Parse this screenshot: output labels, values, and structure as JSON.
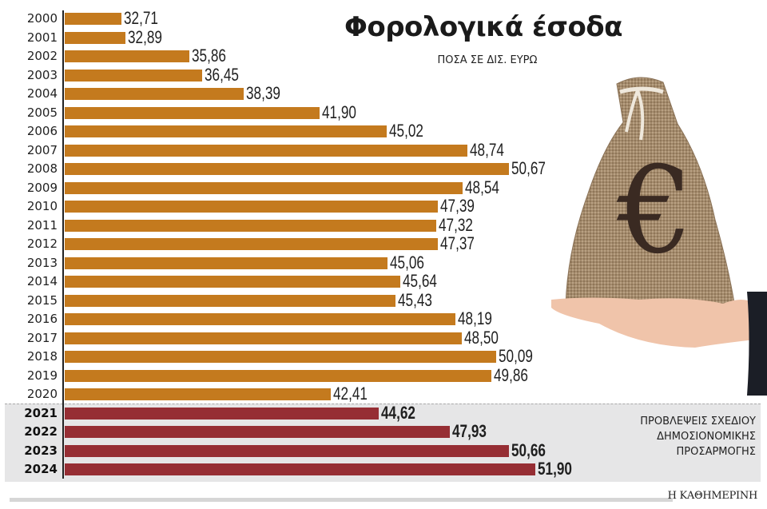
{
  "title": "Φορολογικά έσοδα",
  "subtitle": "ΠΟΣΑ ΣΕ ΔΙΣ. ΕΥΡΩ",
  "forecast_note": [
    "ΠΡΟΒΛΕΨΕΙΣ ΣΧΕΔΙΟΥ",
    "ΔΗΜΟΣΙΟΝΟΜΙΚΗΣ",
    "ΠΡΟΣΑΡΜΟΓΗΣ"
  ],
  "brand": "Η ΚΑΘΗΜΕΡΙΝΗ",
  "colors": {
    "actual": "#c47a1e",
    "forecast": "#962e34",
    "forecast_bg": "#e6e6e7"
  },
  "illustration": "hand-holding-euro-money-bag",
  "chart_data": {
    "type": "bar",
    "orientation": "horizontal",
    "title": "Φορολογικά έσοδα",
    "subtitle": "ΠΟΣΑ ΣΕ ΔΙΣ. ΕΥΡΩ",
    "xlabel": "",
    "ylabel": "",
    "grid": false,
    "categories": [
      "2000",
      "2001",
      "2002",
      "2003",
      "2004",
      "2005",
      "2006",
      "2007",
      "2008",
      "2009",
      "2010",
      "2011",
      "2012",
      "2013",
      "2014",
      "2015",
      "2016",
      "2017",
      "2018",
      "2019",
      "2020",
      "2021",
      "2022",
      "2023",
      "2024"
    ],
    "series": [
      {
        "name": "Φορολογικά έσοδα",
        "values": [
          32.71,
          32.89,
          35.86,
          36.45,
          38.39,
          41.9,
          45.02,
          48.74,
          50.67,
          48.54,
          47.39,
          47.32,
          47.37,
          45.06,
          45.64,
          45.43,
          48.19,
          48.5,
          50.09,
          49.86,
          42.41,
          null,
          null,
          null,
          null
        ]
      },
      {
        "name": "ΠΡΟΒΛΕΨΕΙΣ ΣΧΕΔΙΟΥ ΔΗΜΟΣΙΟΝΟΜΙΚΗΣ ΠΡΟΣΑΡΜΟΓΗΣ",
        "values": [
          null,
          null,
          null,
          null,
          null,
          null,
          null,
          null,
          null,
          null,
          null,
          null,
          null,
          null,
          null,
          null,
          null,
          null,
          null,
          null,
          null,
          44.62,
          47.93,
          50.66,
          51.9
        ]
      }
    ],
    "labels": [
      "32,71",
      "32,89",
      "35,86",
      "36,45",
      "38,39",
      "41,90",
      "45,02",
      "48,74",
      "50,67",
      "48,54",
      "47,39",
      "47,32",
      "47,37",
      "45,06",
      "45,64",
      "45,43",
      "48,19",
      "48,50",
      "50,09",
      "49,86",
      "42,41",
      "44,62",
      "47,93",
      "50,66",
      "51,90"
    ],
    "annotations": [
      "ΠΡΟΒΛΕΨΕΙΣ ΣΧΕΔΙΟΥ ΔΗΜΟΣΙΟΝΟΜΙΚΗΣ ΠΡΟΣΑΡΜΟΓΗΣ"
    ]
  }
}
